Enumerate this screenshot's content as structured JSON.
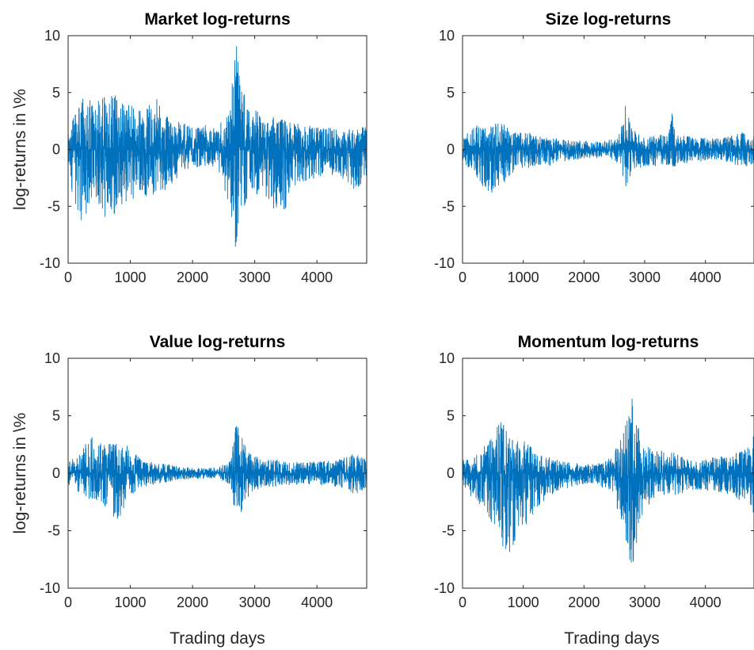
{
  "chart_data": [
    {
      "type": "line",
      "title": "Market log-returns",
      "xlabel": "",
      "ylabel": "log-returns in \\%",
      "xlim": [
        0,
        4800
      ],
      "ylim": [
        -10,
        10
      ],
      "xticks": [
        "0",
        "1000",
        "2000",
        "3000",
        "4000"
      ],
      "yticks": [
        "-10",
        "-5",
        "0",
        "5",
        "10"
      ],
      "color": "#0072BD",
      "series": [
        {
          "x": [
            0,
            200,
            400,
            600,
            800,
            1000,
            1200,
            1400,
            1600,
            1800,
            2000,
            2200,
            2400,
            2600,
            2700,
            2750,
            2800,
            2900,
            3000,
            3200,
            3400,
            3600,
            3800,
            4000,
            4200,
            4400,
            4600,
            4800
          ],
          "upper": [
            1.5,
            4.8,
            4.3,
            5.2,
            5.0,
            4.0,
            3.5,
            5.2,
            3.2,
            2.5,
            2.0,
            2.2,
            1.8,
            4.0,
            10.0,
            7.5,
            6.0,
            3.8,
            3.5,
            3.0,
            3.0,
            2.6,
            2.2,
            2.0,
            2.0,
            1.8,
            2.0,
            2.2
          ],
          "lower": [
            -3.0,
            -7.0,
            -4.0,
            -7.0,
            -5.2,
            -4.5,
            -4.0,
            -4.5,
            -3.5,
            -2.2,
            -1.8,
            -1.5,
            -1.8,
            -5.0,
            -9.3,
            -7.0,
            -6.5,
            -4.0,
            -4.0,
            -4.2,
            -7.2,
            -3.5,
            -2.8,
            -3.0,
            -2.2,
            -2.5,
            -3.8,
            -2.5
          ]
        }
      ]
    },
    {
      "type": "line",
      "title": "Size log-returns",
      "xlabel": "",
      "ylabel": "",
      "xlim": [
        0,
        4800
      ],
      "ylim": [
        -10,
        10
      ],
      "xticks": [
        "0",
        "1000",
        "2000",
        "3000",
        "4000"
      ],
      "yticks": [
        "-10",
        "-5",
        "0",
        "5",
        "10"
      ],
      "color": "#0072BD",
      "series": [
        {
          "x": [
            0,
            200,
            400,
            600,
            800,
            1000,
            1200,
            1400,
            1600,
            1800,
            2000,
            2200,
            2400,
            2600,
            2700,
            2750,
            2800,
            2900,
            3000,
            3200,
            3400,
            3450,
            3500,
            3600,
            3800,
            4000,
            4200,
            4400,
            4600,
            4800
          ],
          "upper": [
            1.0,
            2.2,
            1.8,
            2.8,
            1.5,
            1.8,
            1.2,
            1.0,
            1.0,
            0.8,
            0.8,
            0.7,
            0.8,
            1.5,
            4.4,
            2.5,
            2.0,
            1.5,
            1.2,
            1.2,
            1.5,
            3.6,
            1.5,
            1.2,
            1.2,
            1.0,
            1.0,
            1.2,
            1.5,
            1.5
          ],
          "lower": [
            -1.2,
            -2.0,
            -4.3,
            -3.5,
            -2.2,
            -1.8,
            -1.6,
            -1.5,
            -1.2,
            -1.0,
            -0.8,
            -0.8,
            -0.8,
            -1.5,
            -3.5,
            -2.5,
            -2.0,
            -1.8,
            -1.5,
            -1.5,
            -1.5,
            -2.0,
            -1.5,
            -1.2,
            -1.2,
            -1.0,
            -1.0,
            -1.2,
            -1.5,
            -1.5
          ]
        }
      ]
    },
    {
      "type": "line",
      "title": "Value log-returns",
      "xlabel": "Trading days",
      "ylabel": "log-returns in \\%",
      "xlim": [
        0,
        4800
      ],
      "ylim": [
        -10,
        10
      ],
      "xticks": [
        "0",
        "1000",
        "2000",
        "3000",
        "4000"
      ],
      "yticks": [
        "-10",
        "-5",
        "0",
        "5",
        "10"
      ],
      "color": "#0072BD",
      "series": [
        {
          "x": [
            0,
            200,
            400,
            600,
            800,
            1000,
            1200,
            1400,
            1600,
            1800,
            2000,
            2200,
            2400,
            2600,
            2700,
            2750,
            2800,
            2900,
            3000,
            3200,
            3400,
            3600,
            3800,
            4000,
            4200,
            4400,
            4600,
            4800
          ],
          "upper": [
            1.0,
            1.8,
            3.7,
            2.5,
            3.0,
            2.2,
            1.2,
            1.0,
            0.8,
            0.6,
            0.5,
            0.5,
            0.5,
            1.0,
            4.6,
            4.5,
            3.5,
            2.0,
            1.5,
            1.2,
            1.2,
            1.0,
            1.0,
            1.0,
            1.2,
            1.3,
            1.8,
            1.5
          ],
          "lower": [
            -1.0,
            -1.8,
            -2.5,
            -3.0,
            -4.2,
            -2.2,
            -1.2,
            -1.0,
            -0.8,
            -0.6,
            -0.5,
            -0.5,
            -0.5,
            -1.0,
            -4.0,
            -4.2,
            -3.5,
            -2.0,
            -1.5,
            -1.2,
            -1.2,
            -1.0,
            -1.0,
            -1.0,
            -1.2,
            -1.3,
            -1.8,
            -1.5
          ]
        }
      ]
    },
    {
      "type": "line",
      "title": "Momentum log-returns",
      "xlabel": "Trading days",
      "ylabel": "",
      "xlim": [
        0,
        4800
      ],
      "ylim": [
        -10,
        10
      ],
      "xticks": [
        "0",
        "1000",
        "2000",
        "3000",
        "4000"
      ],
      "yticks": [
        "-10",
        "-5",
        "0",
        "5",
        "10"
      ],
      "color": "#0072BD",
      "series": [
        {
          "x": [
            0,
            200,
            400,
            600,
            800,
            1000,
            1200,
            1400,
            1600,
            1800,
            2000,
            2200,
            2400,
            2600,
            2700,
            2800,
            2850,
            2900,
            3000,
            3200,
            3400,
            3600,
            3800,
            4000,
            4200,
            4400,
            4600,
            4800
          ],
          "upper": [
            1.2,
            2.0,
            2.5,
            5.0,
            3.2,
            3.0,
            2.0,
            1.5,
            1.2,
            1.0,
            0.8,
            0.8,
            1.2,
            3.0,
            5.0,
            6.8,
            5.5,
            4.0,
            2.5,
            2.0,
            2.0,
            1.5,
            1.2,
            1.2,
            1.5,
            1.5,
            2.0,
            3.5
          ],
          "lower": [
            -1.2,
            -2.5,
            -3.5,
            -6.0,
            -7.6,
            -5.0,
            -3.5,
            -2.2,
            -1.5,
            -1.2,
            -1.0,
            -1.0,
            -1.5,
            -4.0,
            -6.5,
            -8.6,
            -7.0,
            -5.0,
            -3.0,
            -2.5,
            -2.0,
            -1.8,
            -1.5,
            -1.5,
            -1.8,
            -1.8,
            -2.5,
            -3.5
          ]
        }
      ]
    }
  ]
}
